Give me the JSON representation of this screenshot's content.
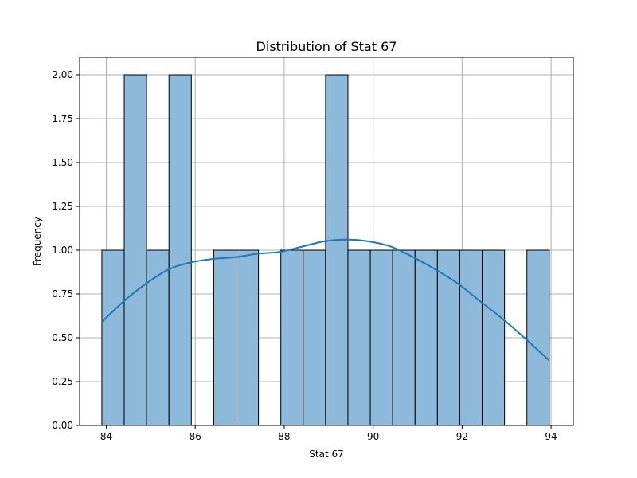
{
  "chart_data": {
    "type": "bar",
    "title": "Distribution of Stat 67",
    "xlabel": "Stat 67",
    "ylabel": "Frequency",
    "xlim": [
      83.4,
      94.5
    ],
    "ylim": [
      0,
      2.1
    ],
    "grid": true,
    "bin_edges": [
      83.9,
      84.403,
      84.906,
      85.409,
      85.912,
      86.415,
      86.918,
      87.421,
      87.924,
      88.427,
      88.93,
      89.433,
      89.936,
      90.439,
      90.942,
      91.445,
      91.948,
      92.451,
      92.954,
      93.457,
      93.96
    ],
    "counts": [
      1,
      2,
      1,
      2,
      0,
      1,
      1,
      0,
      1,
      1,
      2,
      1,
      1,
      1,
      1,
      1,
      1,
      1,
      0,
      1
    ],
    "xticks": [
      {
        "value": 84,
        "label": "84"
      },
      {
        "value": 86,
        "label": "86"
      },
      {
        "value": 88,
        "label": "88"
      },
      {
        "value": 90,
        "label": "90"
      },
      {
        "value": 92,
        "label": "92"
      },
      {
        "value": 94,
        "label": "94"
      }
    ],
    "yticks": [
      {
        "value": 0,
        "label": "0.00"
      },
      {
        "value": 0.25,
        "label": "0.25"
      },
      {
        "value": 0.5,
        "label": "0.50"
      },
      {
        "value": 0.75,
        "label": "0.75"
      },
      {
        "value": 1.0,
        "label": "1.00"
      },
      {
        "value": 1.25,
        "label": "1.25"
      },
      {
        "value": 1.5,
        "label": "1.50"
      },
      {
        "value": 1.75,
        "label": "1.75"
      },
      {
        "value": 2.0,
        "label": "2.00"
      }
    ],
    "kde": {
      "x": [
        83.9,
        84.4,
        84.9,
        85.4,
        85.9,
        86.4,
        86.9,
        87.4,
        87.9,
        88.4,
        88.9,
        89.4,
        89.9,
        90.4,
        90.9,
        91.4,
        91.9,
        92.4,
        92.9,
        93.4,
        93.96
      ],
      "y": [
        0.59,
        0.71,
        0.81,
        0.89,
        0.93,
        0.95,
        0.96,
        0.98,
        0.99,
        1.02,
        1.05,
        1.06,
        1.05,
        1.02,
        0.96,
        0.89,
        0.81,
        0.71,
        0.61,
        0.5,
        0.37
      ]
    },
    "colors": {
      "bar_fill": "#8db9da",
      "bar_edge": "#000000",
      "kde_line": "#1f77b4",
      "grid": "#b0b0b0"
    }
  }
}
